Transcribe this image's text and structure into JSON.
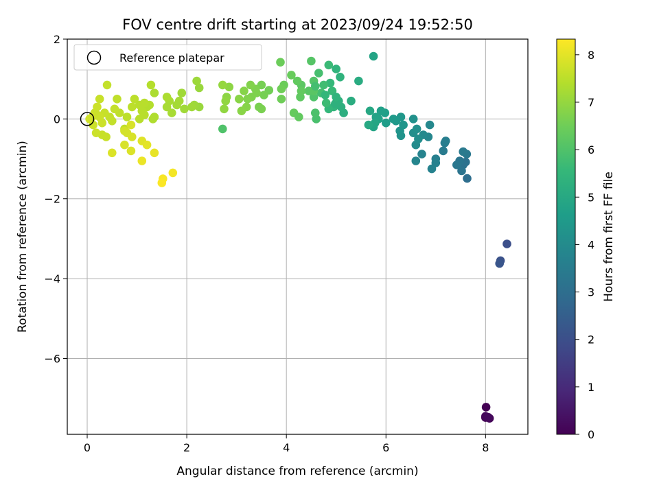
{
  "chart_data": {
    "type": "scatter",
    "title": "FOV centre drift starting at 2023/09/24 19:52:50",
    "xlabel": "Angular distance from reference (arcmin)",
    "ylabel": "Rotation from reference (arcmin)",
    "xlim": [
      -0.4,
      8.85
    ],
    "ylim": [
      -7.9,
      2.0
    ],
    "xticks": [
      0,
      2,
      4,
      6,
      8
    ],
    "yticks": [
      2,
      0,
      -2,
      -4,
      -6
    ],
    "grid": true,
    "legend": {
      "placement": "top-left",
      "entries": [
        "Reference platepar"
      ]
    },
    "reference_point": {
      "label": "Reference platepar",
      "x": 0,
      "y": 0,
      "marker": "open-circle"
    },
    "colorbar": {
      "label": "Hours from first FF file",
      "colormap": "viridis",
      "range": [
        0,
        8.33
      ],
      "ticks": [
        0,
        1,
        2,
        3,
        4,
        5,
        6,
        7,
        8
      ]
    },
    "series": [
      {
        "points": [
          [
            8.01,
            -7.22,
            0.0
          ],
          [
            8.0,
            -7.48,
            0.05
          ],
          [
            8.08,
            -7.5,
            0.1
          ],
          [
            8.0,
            -7.45,
            0.15
          ],
          [
            8.05,
            -7.47,
            0.2
          ],
          [
            8.43,
            -3.13,
            2.0
          ],
          [
            8.3,
            -3.55,
            2.1
          ],
          [
            8.28,
            -3.62,
            2.2
          ],
          [
            7.63,
            -1.49,
            3.0
          ],
          [
            7.6,
            -1.08,
            3.1
          ],
          [
            7.55,
            -1.15,
            3.15
          ],
          [
            7.52,
            -1.3,
            3.2
          ],
          [
            7.48,
            -1.05,
            3.25
          ],
          [
            7.42,
            -1.15,
            3.3
          ],
          [
            7.62,
            -0.88,
            3.35
          ],
          [
            7.55,
            -0.82,
            3.4
          ],
          [
            7.15,
            -0.8,
            3.45
          ],
          [
            7.18,
            -0.6,
            3.5
          ],
          [
            7.2,
            -0.55,
            3.55
          ],
          [
            7.0,
            -1.0,
            3.6
          ],
          [
            7.0,
            -1.1,
            3.65
          ],
          [
            6.92,
            -1.25,
            3.7
          ],
          [
            6.72,
            -0.88,
            3.75
          ],
          [
            6.6,
            -1.05,
            3.8
          ],
          [
            6.85,
            -0.45,
            3.85
          ],
          [
            6.88,
            -0.15,
            3.9
          ],
          [
            6.75,
            -0.4,
            3.95
          ],
          [
            6.6,
            -0.65,
            4.0
          ],
          [
            6.65,
            -0.5,
            4.05
          ],
          [
            6.55,
            -0.35,
            4.1
          ],
          [
            6.62,
            -0.25,
            4.15
          ],
          [
            6.55,
            0.0,
            4.2
          ],
          [
            6.3,
            -0.42,
            4.25
          ],
          [
            6.28,
            -0.3,
            4.3
          ],
          [
            6.35,
            -0.15,
            4.35
          ],
          [
            6.3,
            0.05,
            4.4
          ],
          [
            6.2,
            -0.05,
            4.45
          ],
          [
            6.15,
            0.0,
            4.5
          ],
          [
            6.0,
            -0.1,
            4.6
          ],
          [
            5.98,
            0.15,
            4.65
          ],
          [
            5.9,
            0.2,
            4.7
          ],
          [
            5.85,
            0.0,
            4.75
          ],
          [
            5.8,
            0.05,
            4.8
          ],
          [
            5.75,
            -0.2,
            4.85
          ],
          [
            5.78,
            -0.1,
            4.9
          ],
          [
            5.68,
            0.2,
            4.95
          ],
          [
            5.65,
            -0.15,
            5.0
          ],
          [
            5.45,
            0.95,
            5.1
          ],
          [
            5.3,
            0.45,
            5.15
          ],
          [
            5.15,
            0.15,
            5.2
          ],
          [
            5.1,
            0.3,
            5.25
          ],
          [
            5.05,
            0.45,
            5.3
          ],
          [
            5.08,
            1.05,
            5.35
          ],
          [
            5.0,
            1.25,
            5.4
          ],
          [
            4.95,
            0.3,
            5.45
          ],
          [
            4.85,
            0.25,
            5.5
          ],
          [
            4.88,
            0.9,
            5.55
          ],
          [
            4.92,
            0.7,
            5.6
          ],
          [
            4.85,
            1.35,
            5.65
          ],
          [
            4.8,
            0.4,
            5.7
          ],
          [
            4.75,
            0.85,
            5.75
          ],
          [
            4.7,
            0.65,
            5.8
          ],
          [
            4.65,
            1.15,
            5.85
          ],
          [
            4.6,
            0.0,
            5.9
          ],
          [
            4.58,
            0.15,
            5.95
          ],
          [
            4.55,
            0.55,
            6.0
          ],
          [
            4.55,
            0.95,
            6.05
          ],
          [
            4.5,
            1.45,
            6.1
          ],
          [
            4.45,
            0.7,
            6.15
          ],
          [
            4.55,
            0.7,
            6.15
          ],
          [
            4.98,
            0.38,
            5.3
          ],
          [
            5.0,
            0.55,
            5.4
          ],
          [
            4.78,
            0.6,
            5.5
          ],
          [
            4.58,
            0.82,
            5.8
          ],
          [
            5.75,
            1.57,
            4.85
          ],
          [
            4.3,
            0.85,
            6.2
          ],
          [
            4.28,
            0.55,
            6.25
          ],
          [
            4.22,
            0.95,
            6.3
          ],
          [
            4.15,
            0.15,
            6.35
          ],
          [
            4.1,
            1.1,
            6.4
          ],
          [
            4.25,
            0.05,
            6.3
          ],
          [
            3.95,
            0.85,
            6.45
          ],
          [
            3.9,
            0.75,
            6.5
          ],
          [
            3.88,
            1.42,
            6.45
          ],
          [
            3.9,
            0.5,
            6.5
          ],
          [
            3.65,
            0.72,
            6.55
          ],
          [
            3.55,
            0.6,
            6.6
          ],
          [
            3.5,
            0.85,
            6.6
          ],
          [
            3.5,
            0.25,
            6.65
          ],
          [
            3.45,
            0.3,
            6.65
          ],
          [
            3.38,
            0.75,
            6.7
          ],
          [
            3.3,
            0.55,
            6.7
          ],
          [
            3.28,
            0.85,
            6.75
          ],
          [
            3.22,
            0.5,
            6.75
          ],
          [
            3.2,
            0.3,
            6.8
          ],
          [
            3.15,
            0.7,
            6.8
          ],
          [
            3.1,
            0.2,
            6.85
          ],
          [
            3.05,
            0.5,
            6.85
          ],
          [
            2.85,
            0.8,
            6.9
          ],
          [
            2.8,
            0.55,
            6.9
          ],
          [
            2.78,
            0.45,
            6.95
          ],
          [
            2.75,
            0.25,
            6.95
          ],
          [
            2.72,
            0.85,
            7.0
          ],
          [
            2.72,
            -0.25,
            6.0
          ],
          [
            4.3,
            0.7,
            6.3
          ],
          [
            3.4,
            0.65,
            6.7
          ],
          [
            2.25,
            0.78,
            7.05
          ],
          [
            2.25,
            0.3,
            7.05
          ],
          [
            2.2,
            0.95,
            7.1
          ],
          [
            2.15,
            0.35,
            7.1
          ],
          [
            2.1,
            0.3,
            7.15
          ],
          [
            1.95,
            0.25,
            7.15
          ],
          [
            1.9,
            0.65,
            7.15
          ],
          [
            1.85,
            0.45,
            7.2
          ],
          [
            1.8,
            0.35,
            7.2
          ],
          [
            1.7,
            0.15,
            7.25
          ],
          [
            1.65,
            0.45,
            7.25
          ],
          [
            1.6,
            0.3,
            7.25
          ],
          [
            1.6,
            0.55,
            7.3
          ],
          [
            1.35,
            0.65,
            7.3
          ],
          [
            1.35,
            0.05,
            7.35
          ],
          [
            1.32,
            0.0,
            7.35
          ],
          [
            1.28,
            0.85,
            7.4
          ],
          [
            1.25,
            0.35,
            7.4
          ],
          [
            1.2,
            0.3,
            7.4
          ],
          [
            1.15,
            0.4,
            7.45
          ],
          [
            1.1,
            0.2,
            7.45
          ],
          [
            1.05,
            0.0,
            7.45
          ],
          [
            0.95,
            0.5,
            7.5
          ],
          [
            0.9,
            0.3,
            7.5
          ],
          [
            0.8,
            0.05,
            7.5
          ],
          [
            0.75,
            -0.25,
            7.55
          ],
          [
            0.65,
            0.15,
            7.55
          ],
          [
            0.6,
            0.5,
            7.55
          ],
          [
            0.55,
            0.25,
            7.6
          ],
          [
            0.5,
            -0.05,
            7.6
          ],
          [
            0.45,
            0.05,
            7.6
          ],
          [
            0.4,
            0.85,
            7.6
          ],
          [
            0.35,
            0.15,
            7.65
          ],
          [
            0.3,
            -0.4,
            7.65
          ],
          [
            0.25,
            0.5,
            7.65
          ],
          [
            0.2,
            0.1,
            7.7
          ],
          [
            0.18,
            -0.35,
            7.7
          ],
          [
            0.15,
            0.15,
            7.7
          ],
          [
            0.12,
            -0.15,
            7.7
          ],
          [
            0.1,
            0.05,
            7.75
          ],
          [
            0.05,
            0.0,
            7.75
          ],
          [
            0.2,
            0.3,
            7.7
          ],
          [
            0.25,
            0.05,
            7.7
          ],
          [
            0.3,
            -0.1,
            7.7
          ],
          [
            0.38,
            -0.45,
            7.65
          ],
          [
            1.05,
            0.35,
            7.45
          ],
          [
            1.15,
            0.1,
            7.45
          ],
          [
            0.75,
            -0.3,
            7.8
          ],
          [
            0.8,
            -0.35,
            7.8
          ],
          [
            0.88,
            -0.15,
            7.85
          ],
          [
            0.9,
            -0.45,
            7.85
          ],
          [
            0.75,
            -0.65,
            7.85
          ],
          [
            0.88,
            -0.8,
            7.9
          ],
          [
            0.5,
            -0.85,
            7.9
          ],
          [
            1.1,
            -0.55,
            7.95
          ],
          [
            1.2,
            -0.65,
            8.0
          ],
          [
            1.35,
            -0.85,
            8.05
          ],
          [
            1.1,
            -1.05,
            8.1
          ],
          [
            1.72,
            -1.35,
            8.2
          ],
          [
            1.52,
            -1.5,
            8.25
          ],
          [
            1.5,
            -1.6,
            8.3
          ]
        ]
      }
    ]
  }
}
